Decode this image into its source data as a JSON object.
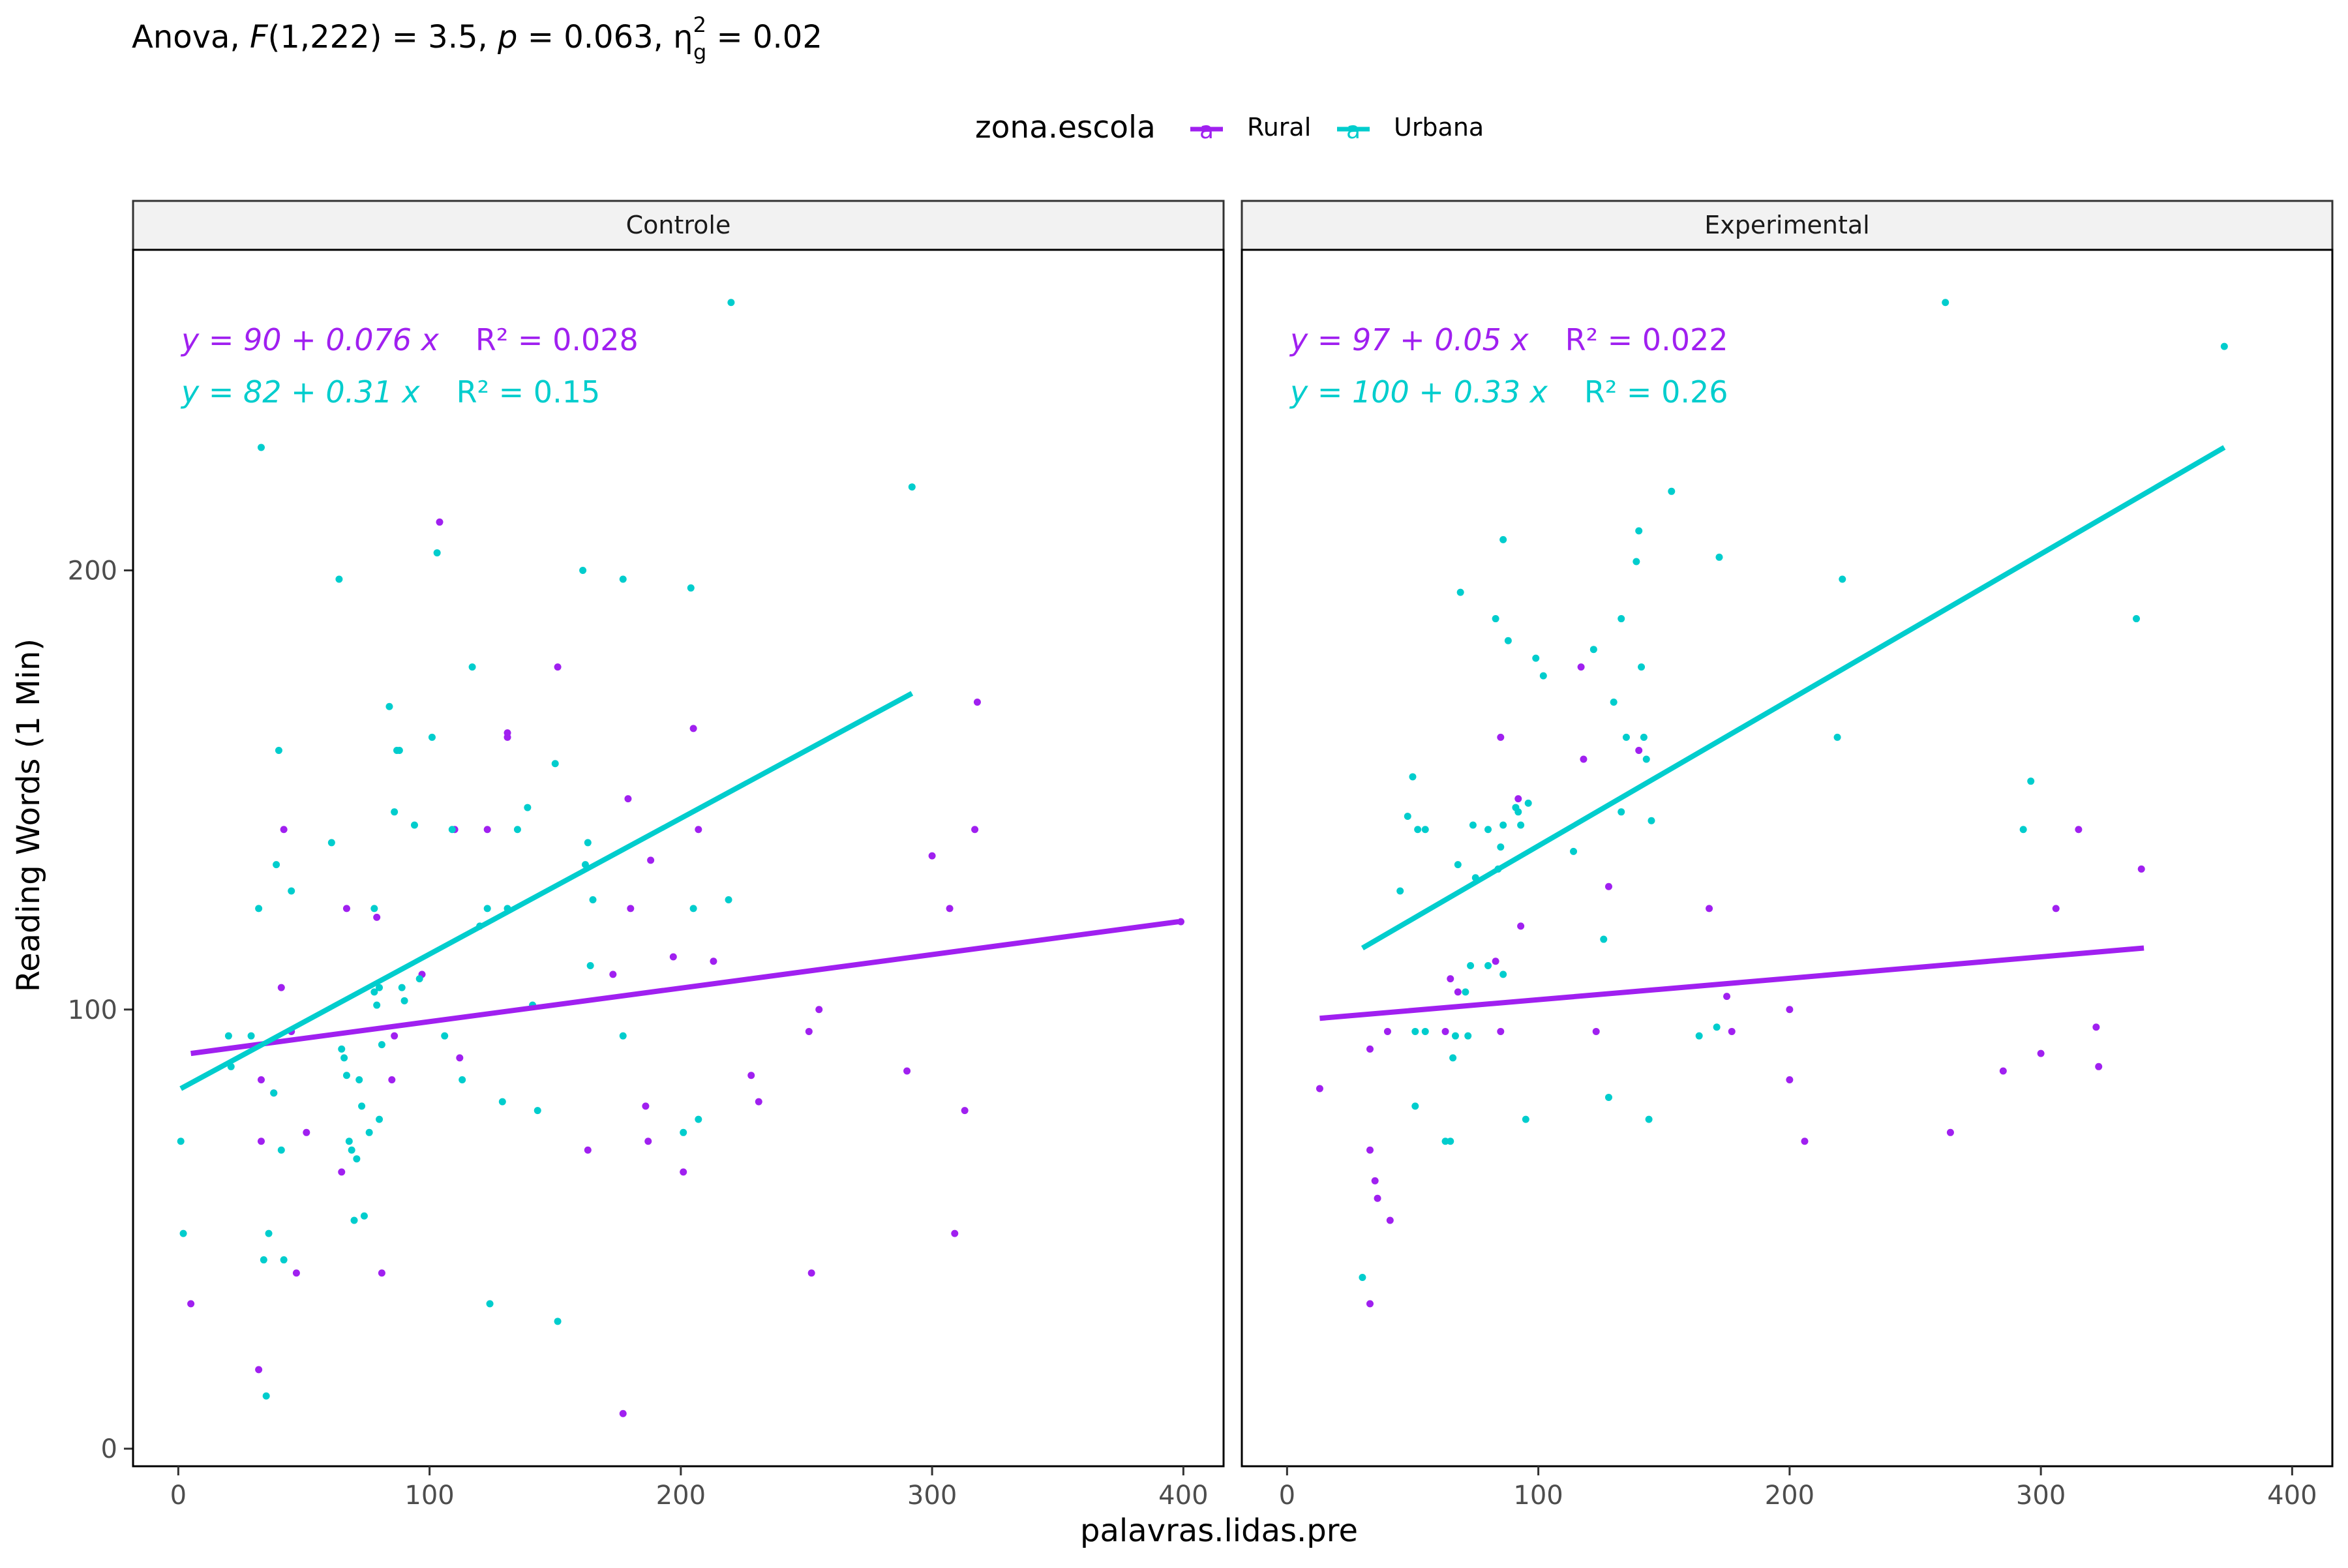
{
  "title": {
    "prefix": "Anova, ",
    "F": "F",
    "df": "(1,222) = 3.5, ",
    "p": "p",
    "p_value": " = 0.063, ",
    "eta": "η",
    "eta_sup": "2",
    "eta_sub": "g",
    "eta_value": " = 0.02"
  },
  "legend": {
    "title": "zona.escola",
    "placement": "top",
    "key_letter": "a",
    "items": [
      {
        "label": "Rural",
        "color": "#A020F0"
      },
      {
        "label": "Urbana",
        "color": "#00CDCD"
      }
    ]
  },
  "axes": {
    "xlabel": "palavras.lidas.pre",
    "ylabel": "Reading Words (1 Min)",
    "x_ticks": [
      0,
      100,
      200,
      300,
      400
    ],
    "y_ticks": [
      0,
      100,
      200
    ],
    "xlim": [
      -18,
      416
    ],
    "ylim": [
      -4,
      273
    ]
  },
  "colors": {
    "Rural": "#A020F0",
    "Urbana": "#00CDCD",
    "strip_bg": "#F2F2F2"
  },
  "chart_data": {
    "type": "scatter",
    "grid": false,
    "facets": [
      {
        "name": "Controle",
        "equations": [
          {
            "series": "Rural",
            "text": "y = 90 + 0.076 x",
            "r2": "R² = 0.028"
          },
          {
            "series": "Urbana",
            "text": "y = 82 + 0.31 x",
            "r2": "R² = 0.15"
          }
        ],
        "trend_lines": [
          {
            "series": "Rural",
            "x": [
              5,
              398
            ],
            "y": [
              90,
              120
            ]
          },
          {
            "series": "Urbana",
            "x": [
              1,
              292
            ],
            "y": [
              82,
              172
            ]
          }
        ],
        "points": {
          "Rural": [
            [
              5,
              33
            ],
            [
              32,
              18
            ],
            [
              33,
              70
            ],
            [
              33,
              84
            ],
            [
              38,
              81
            ],
            [
              41,
              105
            ],
            [
              42,
              141
            ],
            [
              45,
              95
            ],
            [
              47,
              40
            ],
            [
              51,
              72
            ],
            [
              65,
              63
            ],
            [
              67,
              123
            ],
            [
              79,
              121
            ],
            [
              81,
              40
            ],
            [
              85,
              84
            ],
            [
              86,
              94
            ],
            [
              97,
              108
            ],
            [
              104,
              211
            ],
            [
              110,
              141
            ],
            [
              112,
              89
            ],
            [
              123,
              141
            ],
            [
              131,
              162
            ],
            [
              131,
              163
            ],
            [
              151,
              178
            ],
            [
              163,
              68
            ],
            [
              173,
              108
            ],
            [
              177,
              8
            ],
            [
              179,
              148
            ],
            [
              180,
              123
            ],
            [
              186,
              78
            ],
            [
              187,
              70
            ],
            [
              188,
              134
            ],
            [
              197,
              112
            ],
            [
              201,
              63
            ],
            [
              205,
              164
            ],
            [
              207,
              141
            ],
            [
              213,
              111
            ],
            [
              228,
              85
            ],
            [
              231,
              79
            ],
            [
              251,
              95
            ],
            [
              252,
              40
            ],
            [
              255,
              100
            ],
            [
              290,
              86
            ],
            [
              300,
              135
            ],
            [
              307,
              123
            ],
            [
              309,
              49
            ],
            [
              313,
              77
            ],
            [
              317,
              141
            ],
            [
              318,
              170
            ],
            [
              399,
              120
            ]
          ],
          "Urbana": [
            [
              1,
              70
            ],
            [
              2,
              49
            ],
            [
              20,
              94
            ],
            [
              21,
              87
            ],
            [
              29,
              94
            ],
            [
              32,
              123
            ],
            [
              33,
              228
            ],
            [
              34,
              43
            ],
            [
              35,
              12
            ],
            [
              36,
              49
            ],
            [
              38,
              81
            ],
            [
              39,
              133
            ],
            [
              40,
              159
            ],
            [
              41,
              68
            ],
            [
              42,
              43
            ],
            [
              45,
              127
            ],
            [
              61,
              138
            ],
            [
              64,
              198
            ],
            [
              65,
              91
            ],
            [
              66,
              89
            ],
            [
              67,
              85
            ],
            [
              68,
              70
            ],
            [
              69,
              68
            ],
            [
              70,
              52
            ],
            [
              71,
              66
            ],
            [
              72,
              84
            ],
            [
              73,
              78
            ],
            [
              74,
              53
            ],
            [
              76,
              72
            ],
            [
              78,
              104
            ],
            [
              78,
              123
            ],
            [
              79,
              101
            ],
            [
              80,
              105
            ],
            [
              80,
              75
            ],
            [
              81,
              92
            ],
            [
              84,
              169
            ],
            [
              86,
              145
            ],
            [
              87,
              159
            ],
            [
              88,
              159
            ],
            [
              89,
              105
            ],
            [
              90,
              102
            ],
            [
              94,
              142
            ],
            [
              96,
              107
            ],
            [
              101,
              162
            ],
            [
              103,
              204
            ],
            [
              106,
              94
            ],
            [
              109,
              141
            ],
            [
              113,
              84
            ],
            [
              117,
              178
            ],
            [
              120,
              119
            ],
            [
              123,
              123
            ],
            [
              124,
              33
            ],
            [
              129,
              79
            ],
            [
              131,
              123
            ],
            [
              135,
              141
            ],
            [
              139,
              146
            ],
            [
              141,
              101
            ],
            [
              143,
              77
            ],
            [
              150,
              156
            ],
            [
              151,
              29
            ],
            [
              161,
              200
            ],
            [
              162,
              133
            ],
            [
              163,
              138
            ],
            [
              164,
              110
            ],
            [
              165,
              125
            ],
            [
              177,
              94
            ],
            [
              177,
              198
            ],
            [
              201,
              72
            ],
            [
              204,
              196
            ],
            [
              205,
              123
            ],
            [
              207,
              75
            ],
            [
              219,
              125
            ],
            [
              220,
              261
            ],
            [
              292,
              219
            ]
          ]
        }
      },
      {
        "name": "Experimental",
        "equations": [
          {
            "series": "Rural",
            "text": "y = 97 + 0.05 x",
            "r2": "R² = 0.022"
          },
          {
            "series": "Urbana",
            "text": "y = 100 + 0.33 x",
            "r2": "R² = 0.26"
          }
        ],
        "trend_lines": [
          {
            "series": "Rural",
            "x": [
              13,
              341
            ],
            "y": [
              98,
              114
            ]
          },
          {
            "series": "Urbana",
            "x": [
              30,
              373
            ],
            "y": [
              114,
              228
            ]
          }
        ],
        "points": {
          "Rural": [
            [
              13,
              82
            ],
            [
              33,
              33
            ],
            [
              33,
              68
            ],
            [
              33,
              91
            ],
            [
              35,
              61
            ],
            [
              36,
              57
            ],
            [
              40,
              95
            ],
            [
              41,
              52
            ],
            [
              63,
              95
            ],
            [
              65,
              107
            ],
            [
              68,
              104
            ],
            [
              83,
              111
            ],
            [
              85,
              95
            ],
            [
              85,
              162
            ],
            [
              92,
              148
            ],
            [
              93,
              119
            ],
            [
              117,
              178
            ],
            [
              118,
              157
            ],
            [
              123,
              95
            ],
            [
              128,
              128
            ],
            [
              140,
              159
            ],
            [
              168,
              123
            ],
            [
              175,
              103
            ],
            [
              177,
              95
            ],
            [
              200,
              100
            ],
            [
              200,
              84
            ],
            [
              206,
              70
            ],
            [
              264,
              72
            ],
            [
              285,
              86
            ],
            [
              300,
              90
            ],
            [
              306,
              123
            ],
            [
              315,
              141
            ],
            [
              322,
              96
            ],
            [
              323,
              87
            ],
            [
              340,
              132
            ]
          ],
          "Urbana": [
            [
              30,
              39
            ],
            [
              45,
              127
            ],
            [
              48,
              144
            ],
            [
              50,
              153
            ],
            [
              51,
              95
            ],
            [
              51,
              78
            ],
            [
              52,
              141
            ],
            [
              55,
              141
            ],
            [
              55,
              95
            ],
            [
              63,
              70
            ],
            [
              65,
              70
            ],
            [
              66,
              89
            ],
            [
              67,
              94
            ],
            [
              68,
              133
            ],
            [
              69,
              195
            ],
            [
              71,
              104
            ],
            [
              72,
              94
            ],
            [
              73,
              110
            ],
            [
              74,
              142
            ],
            [
              75,
              130
            ],
            [
              80,
              110
            ],
            [
              80,
              141
            ],
            [
              83,
              189
            ],
            [
              84,
              132
            ],
            [
              85,
              137
            ],
            [
              86,
              142
            ],
            [
              86,
              108
            ],
            [
              86,
              207
            ],
            [
              88,
              184
            ],
            [
              91,
              146
            ],
            [
              92,
              145
            ],
            [
              93,
              142
            ],
            [
              95,
              75
            ],
            [
              96,
              147
            ],
            [
              99,
              180
            ],
            [
              102,
              176
            ],
            [
              114,
              136
            ],
            [
              122,
              182
            ],
            [
              126,
              116
            ],
            [
              128,
              80
            ],
            [
              130,
              170
            ],
            [
              133,
              145
            ],
            [
              133,
              189
            ],
            [
              135,
              162
            ],
            [
              139,
              202
            ],
            [
              140,
              209
            ],
            [
              141,
              178
            ],
            [
              142,
              162
            ],
            [
              143,
              157
            ],
            [
              144,
              75
            ],
            [
              145,
              143
            ],
            [
              153,
              218
            ],
            [
              164,
              94
            ],
            [
              171,
              96
            ],
            [
              172,
              203
            ],
            [
              219,
              162
            ],
            [
              221,
              198
            ],
            [
              262,
              261
            ],
            [
              293,
              141
            ],
            [
              296,
              152
            ],
            [
              338,
              189
            ],
            [
              373,
              251
            ]
          ]
        }
      }
    ]
  }
}
